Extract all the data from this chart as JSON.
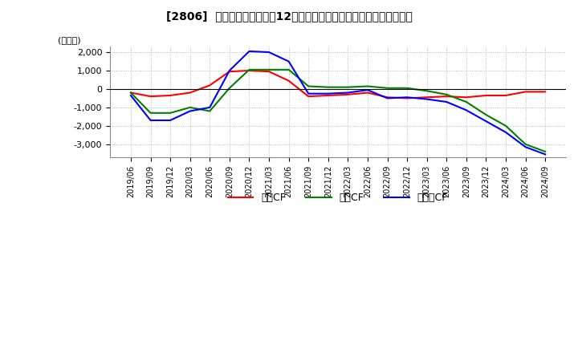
{
  "title": "　2806、 キャッシュフローの12か月移動合計の対前年同期増減額の推移",
  "title_str": "[2806]  キャッシュフローの12か月移動合計の対前年同期増減額の推移",
  "ylabel": "(百万円)",
  "ylim": [
    -3700,
    2300
  ],
  "yticks": [
    -3000,
    -2000,
    -1000,
    0,
    1000,
    2000
  ],
  "background_color": "#ffffff",
  "grid_color": "#aaaaaa",
  "dates": [
    "2019/06",
    "2019/09",
    "2019/12",
    "2020/03",
    "2020/06",
    "2020/09",
    "2020/12",
    "2021/03",
    "2021/06",
    "2021/09",
    "2021/12",
    "2022/03",
    "2022/06",
    "2022/09",
    "2022/12",
    "2023/03",
    "2023/06",
    "2023/09",
    "2023/12",
    "2024/03",
    "2024/06",
    "2024/09"
  ],
  "operating_cf": [
    -200,
    -400,
    -350,
    -200,
    200,
    950,
    1000,
    950,
    450,
    -400,
    -350,
    -300,
    -200,
    -450,
    -500,
    -450,
    -400,
    -450,
    -350,
    -350,
    -150,
    -150
  ],
  "investing_cf": [
    -200,
    -1300,
    -1300,
    -1000,
    -1200,
    50,
    1050,
    1050,
    1050,
    150,
    100,
    100,
    150,
    50,
    50,
    -100,
    -300,
    -700,
    -1400,
    -2000,
    -3000,
    -3400
  ],
  "free_cf": [
    -350,
    -1700,
    -1700,
    -1200,
    -1000,
    1000,
    2050,
    2000,
    1500,
    -250,
    -250,
    -200,
    -50,
    -500,
    -450,
    -550,
    -700,
    -1150,
    -1750,
    -2350,
    -3150,
    -3550
  ],
  "operating_color": "#ff0000",
  "investing_color": "#008000",
  "free_color": "#0000ff",
  "legend_labels": [
    "営業CF",
    "投資CF",
    "フリーCF"
  ],
  "line_width": 1.5
}
